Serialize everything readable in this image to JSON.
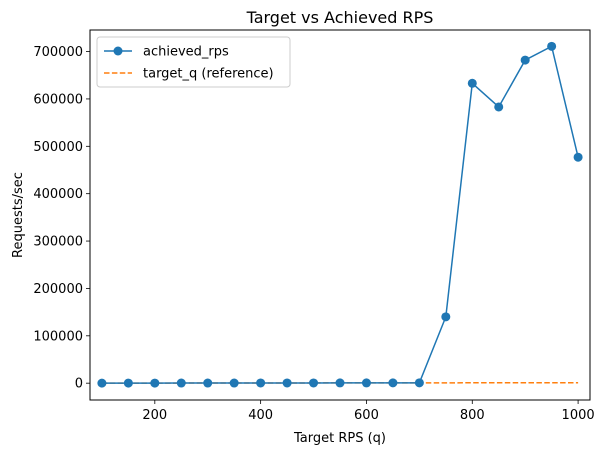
{
  "chart_data": {
    "type": "line",
    "title": "Target vs Achieved RPS",
    "xlabel": "Target RPS (q)",
    "ylabel": "Requests/sec",
    "xlim": [
      77.5,
      1022.5
    ],
    "ylim": [
      -35500,
      745500
    ],
    "xticks": [
      200,
      400,
      600,
      800,
      1000
    ],
    "yticks": [
      0,
      100000,
      200000,
      300000,
      400000,
      500000,
      600000,
      700000
    ],
    "grid": false,
    "legend_position": "top-left",
    "series": [
      {
        "name": "achieved_rps",
        "color": "#1f77b4",
        "style": "solid",
        "marker": "circle",
        "x": [
          100,
          150,
          200,
          250,
          300,
          350,
          400,
          450,
          500,
          550,
          600,
          650,
          700,
          750,
          800,
          850,
          900,
          950,
          1000
        ],
        "y": [
          100,
          150,
          200,
          250,
          300,
          350,
          400,
          450,
          500,
          550,
          600,
          650,
          700,
          140000,
          633000,
          583000,
          682000,
          711000,
          477000
        ]
      },
      {
        "name": "target_q (reference)",
        "color": "#ff7f0e",
        "style": "dashed",
        "marker": "none",
        "x": [
          100,
          150,
          200,
          250,
          300,
          350,
          400,
          450,
          500,
          550,
          600,
          650,
          700,
          750,
          800,
          850,
          900,
          950,
          1000
        ],
        "y": [
          100,
          150,
          200,
          250,
          300,
          350,
          400,
          450,
          500,
          550,
          600,
          650,
          700,
          750,
          800,
          850,
          900,
          950,
          1000
        ]
      }
    ]
  }
}
